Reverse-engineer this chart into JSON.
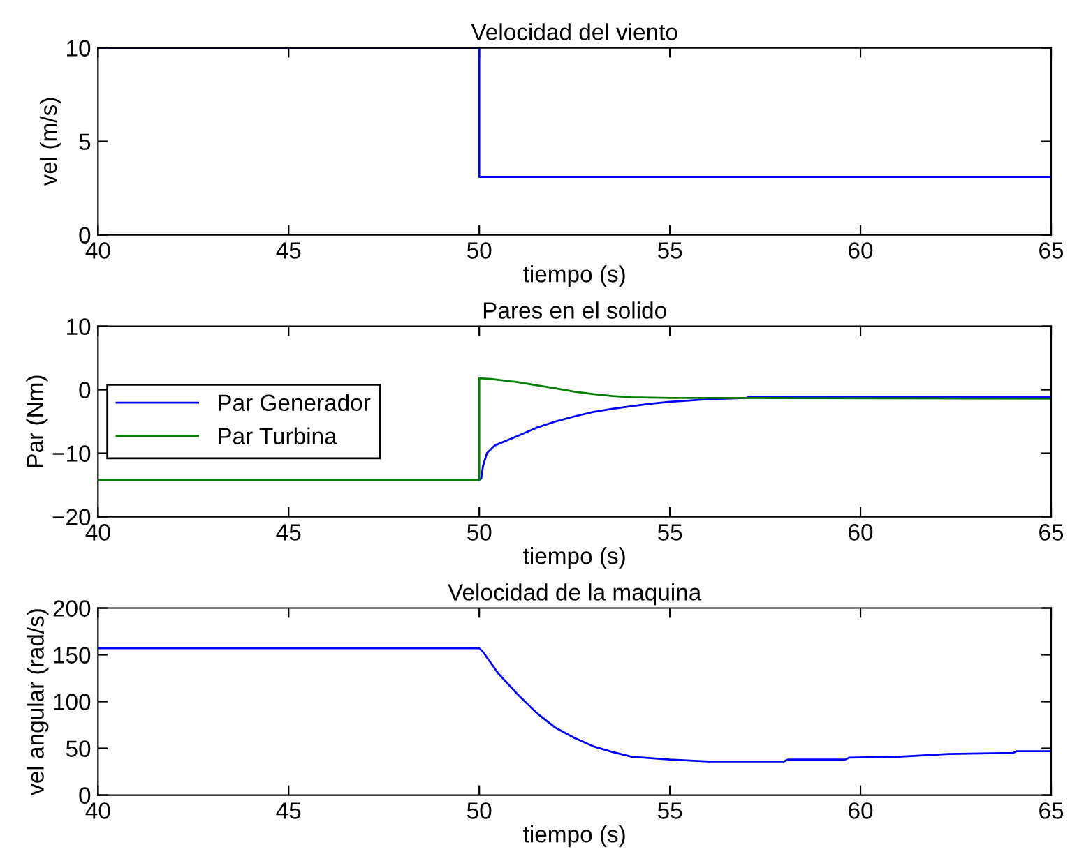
{
  "chart_data": [
    {
      "type": "line",
      "title": "Velocidad del viento",
      "xlabel": "tiempo (s)",
      "ylabel": "vel (m/s)",
      "xlim": [
        40,
        65
      ],
      "ylim": [
        0,
        10
      ],
      "xticks": [
        40,
        45,
        50,
        55,
        60,
        65
      ],
      "yticks": [
        0,
        5,
        10
      ],
      "grid": false,
      "legend": false,
      "series": [
        {
          "color": "#0000ff",
          "x": [
            40,
            50,
            50,
            65
          ],
          "values": [
            10,
            10,
            3.1,
            3.1
          ]
        }
      ]
    },
    {
      "type": "line",
      "title": "Pares en el solido",
      "xlabel": "tiempo (s)",
      "ylabel": "Par (Nm)",
      "xlim": [
        40,
        65
      ],
      "ylim": [
        -20,
        10
      ],
      "xticks": [
        40,
        45,
        50,
        55,
        60,
        65
      ],
      "yticks": [
        -20,
        -10,
        0,
        10
      ],
      "grid": false,
      "legend": "left",
      "series": [
        {
          "name": "Par Generador",
          "color": "#0000ff",
          "x": [
            50,
            50.05,
            50.1,
            50.2,
            50.4,
            51,
            51.5,
            52,
            52.5,
            53,
            53.5,
            54,
            54.5,
            55,
            55.5,
            56,
            57,
            57.1,
            65
          ],
          "values": [
            -14.2,
            -14,
            -12,
            -10,
            -8.8,
            -7.3,
            -6,
            -5,
            -4.2,
            -3.5,
            -3,
            -2.6,
            -2.2,
            -1.9,
            -1.7,
            -1.5,
            -1.3,
            -1.1,
            -1.1
          ]
        },
        {
          "name": "Par Turbina",
          "color": "#008000",
          "x": [
            40,
            50,
            50,
            50.3,
            51,
            51.5,
            52,
            52.5,
            53,
            53.5,
            54,
            55,
            65
          ],
          "values": [
            -14.2,
            -14.2,
            1.8,
            1.7,
            1.2,
            0.7,
            0.2,
            -0.3,
            -0.7,
            -1.0,
            -1.2,
            -1.3,
            -1.4
          ]
        }
      ]
    },
    {
      "type": "line",
      "title": "Velocidad de la maquina",
      "xlabel": "tiempo (s)",
      "ylabel": "vel angular (rad/s)",
      "xlim": [
        40,
        65
      ],
      "ylim": [
        0,
        200
      ],
      "xticks": [
        40,
        45,
        50,
        55,
        60,
        65
      ],
      "yticks": [
        0,
        50,
        100,
        150,
        200
      ],
      "grid": false,
      "legend": false,
      "series": [
        {
          "color": "#0000ff",
          "x": [
            40,
            50,
            50.1,
            50.5,
            51,
            51.5,
            52,
            52.5,
            53,
            53.5,
            54,
            55,
            56,
            58,
            58.1,
            59.6,
            59.7,
            61,
            62.3,
            64,
            64.1,
            65
          ],
          "values": [
            157,
            157,
            153,
            130,
            108,
            88,
            72,
            61,
            52,
            46,
            41,
            38,
            36,
            36,
            38,
            38,
            40,
            41,
            44,
            45,
            47,
            47
          ]
        }
      ]
    }
  ]
}
